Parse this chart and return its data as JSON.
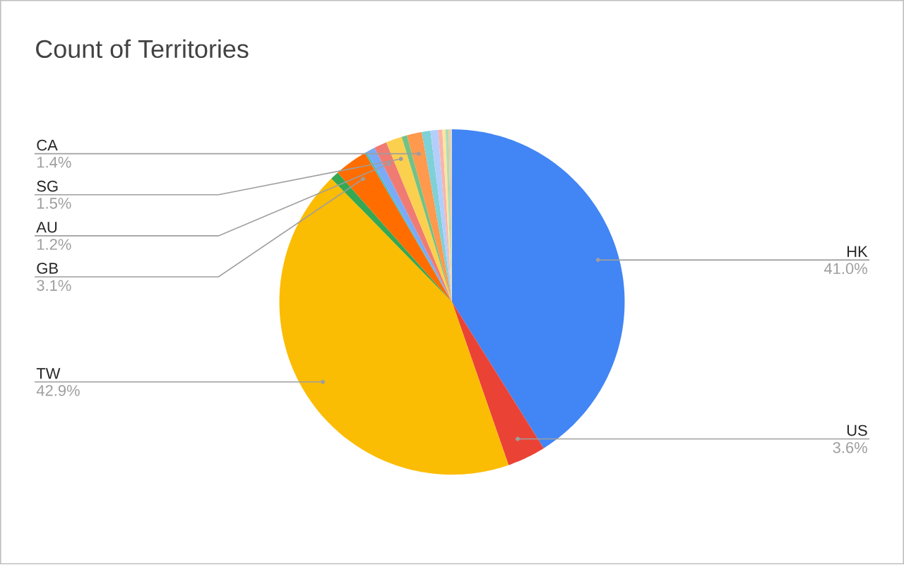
{
  "chart_data": {
    "type": "pie",
    "title": "Count of Territories",
    "categories": [
      "HK",
      "US",
      "TW",
      null,
      "GB",
      null,
      null,
      "AU",
      "SG",
      null,
      "CA",
      null,
      null,
      null,
      null,
      null,
      null,
      null
    ],
    "values": [
      41.0,
      3.6,
      42.9,
      0.8,
      3.1,
      0.2,
      0.8,
      1.2,
      1.5,
      0.5,
      1.4,
      0.8,
      0.7,
      0.4,
      0.3,
      0.3,
      0.2,
      0.1
    ],
    "colors": [
      "#4285f4",
      "#ea4335",
      "#fbbc04",
      "#34a853",
      "#ff6d01",
      "#46bdc6",
      "#7baaf7",
      "#f07b72",
      "#fcd04f",
      "#71c287",
      "#ff994d",
      "#7ed1d7",
      "#b3cefb",
      "#f7b4ae",
      "#fde49b",
      "#aedcba",
      "#ffc599",
      "#b5e5e9"
    ],
    "value_labels": [
      "41.0%",
      "3.6%",
      "42.9%",
      null,
      "3.1%",
      null,
      null,
      "1.2%",
      "1.5%",
      null,
      "1.4%",
      null,
      null,
      null,
      null,
      null,
      null,
      null
    ]
  }
}
